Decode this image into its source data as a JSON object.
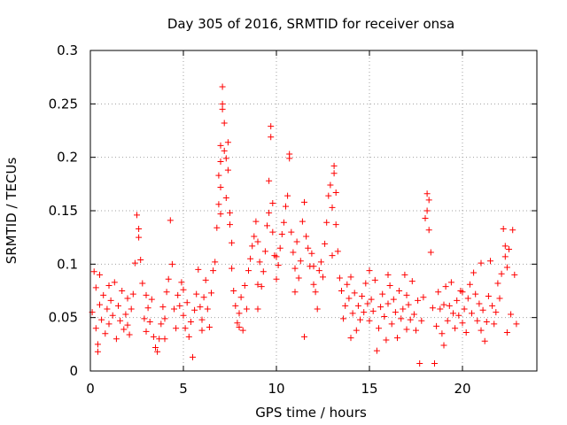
{
  "chart_data": {
    "type": "scatter",
    "title": "Day 305 of 2016, SRMTID for receiver onsa",
    "xlabel": "GPS time / hours",
    "ylabel": "SRMTID / TECUs",
    "xlim": [
      0,
      24
    ],
    "ylim": [
      0,
      0.3
    ],
    "x_ticks": [
      0,
      5,
      10,
      15,
      20
    ],
    "y_ticks": [
      0,
      0.05,
      0.1,
      0.15,
      0.2,
      0.25,
      0.3
    ],
    "x_tick_labels": [
      "0",
      "5",
      "10",
      "15",
      "20"
    ],
    "y_tick_labels": [
      "0",
      "0.05",
      "0.1",
      "0.15",
      "0.2",
      "0.25",
      "0.3"
    ],
    "grid": true,
    "marker": "+",
    "color": "#ff0000",
    "series": [
      {
        "name": "SRMTID",
        "points": [
          [
            0.1,
            0.055
          ],
          [
            0.2,
            0.093
          ],
          [
            0.3,
            0.078
          ],
          [
            0.3,
            0.04
          ],
          [
            0.4,
            0.025
          ],
          [
            0.4,
            0.018
          ],
          [
            0.5,
            0.062
          ],
          [
            0.6,
            0.048
          ],
          [
            0.7,
            0.071
          ],
          [
            0.8,
            0.035
          ],
          [
            0.9,
            0.058
          ],
          [
            1.0,
            0.044
          ],
          [
            1.1,
            0.066
          ],
          [
            1.2,
            0.052
          ],
          [
            1.3,
            0.083
          ],
          [
            1.4,
            0.03
          ],
          [
            1.5,
            0.061
          ],
          [
            1.6,
            0.047
          ],
          [
            1.7,
            0.075
          ],
          [
            1.8,
            0.039
          ],
          [
            1.9,
            0.053
          ],
          [
            2.0,
            0.068
          ],
          [
            2.1,
            0.034
          ],
          [
            2.2,
            0.058
          ],
          [
            2.3,
            0.072
          ],
          [
            2.4,
            0.101
          ],
          [
            2.5,
            0.146
          ],
          [
            2.6,
            0.133
          ],
          [
            2.6,
            0.125
          ],
          [
            2.7,
            0.104
          ],
          [
            2.8,
            0.082
          ],
          [
            2.9,
            0.049
          ],
          [
            3.0,
            0.037
          ],
          [
            3.1,
            0.059
          ],
          [
            3.2,
            0.046
          ],
          [
            3.3,
            0.067
          ],
          [
            3.4,
            0.032
          ],
          [
            3.5,
            0.022
          ],
          [
            3.6,
            0.018
          ],
          [
            3.7,
            0.03
          ],
          [
            3.8,
            0.044
          ],
          [
            3.9,
            0.06
          ],
          [
            4.0,
            0.049
          ],
          [
            4.1,
            0.074
          ],
          [
            4.2,
            0.086
          ],
          [
            4.3,
            0.141
          ],
          [
            4.4,
            0.1
          ],
          [
            4.5,
            0.058
          ],
          [
            4.6,
            0.04
          ],
          [
            4.7,
            0.071
          ],
          [
            4.8,
            0.061
          ],
          [
            4.9,
            0.083
          ],
          [
            5.0,
            0.052
          ],
          [
            5.1,
            0.04
          ],
          [
            5.2,
            0.064
          ],
          [
            5.3,
            0.032
          ],
          [
            5.4,
            0.046
          ],
          [
            5.5,
            0.013
          ],
          [
            5.6,
            0.057
          ],
          [
            5.7,
            0.072
          ],
          [
            5.8,
            0.095
          ],
          [
            5.9,
            0.06
          ],
          [
            6.0,
            0.048
          ],
          [
            6.1,
            0.069
          ],
          [
            6.2,
            0.085
          ],
          [
            6.3,
            0.058
          ],
          [
            6.4,
            0.041
          ],
          [
            6.5,
            0.073
          ],
          [
            6.6,
            0.094
          ],
          [
            6.7,
            0.102
          ],
          [
            6.8,
            0.134
          ],
          [
            6.9,
            0.156
          ],
          [
            6.9,
            0.183
          ],
          [
            7.0,
            0.211
          ],
          [
            7.0,
            0.196
          ],
          [
            7.0,
            0.172
          ],
          [
            7.0,
            0.147
          ],
          [
            7.1,
            0.266
          ],
          [
            7.1,
            0.25
          ],
          [
            7.1,
            0.245
          ],
          [
            7.2,
            0.232
          ],
          [
            7.2,
            0.206
          ],
          [
            7.3,
            0.199
          ],
          [
            7.3,
            0.162
          ],
          [
            7.4,
            0.214
          ],
          [
            7.4,
            0.188
          ],
          [
            7.5,
            0.148
          ],
          [
            7.5,
            0.137
          ],
          [
            7.6,
            0.12
          ],
          [
            7.6,
            0.096
          ],
          [
            7.7,
            0.075
          ],
          [
            7.8,
            0.061
          ],
          [
            7.9,
            0.045
          ],
          [
            8.0,
            0.054
          ],
          [
            8.1,
            0.069
          ],
          [
            8.2,
            0.038
          ],
          [
            8.3,
            0.08
          ],
          [
            8.4,
            0.058
          ],
          [
            8.5,
            0.094
          ],
          [
            8.6,
            0.105
          ],
          [
            8.7,
            0.117
          ],
          [
            8.8,
            0.126
          ],
          [
            8.9,
            0.14
          ],
          [
            9.0,
            0.121
          ],
          [
            9.0,
            0.058
          ],
          [
            9.1,
            0.102
          ],
          [
            9.2,
            0.079
          ],
          [
            9.3,
            0.093
          ],
          [
            9.4,
            0.112
          ],
          [
            9.5,
            0.136
          ],
          [
            9.6,
            0.148
          ],
          [
            9.6,
            0.178
          ],
          [
            9.7,
            0.229
          ],
          [
            9.7,
            0.219
          ],
          [
            9.8,
            0.157
          ],
          [
            9.8,
            0.13
          ],
          [
            9.9,
            0.108
          ],
          [
            10.0,
            0.086
          ],
          [
            10.1,
            0.099
          ],
          [
            10.2,
            0.115
          ],
          [
            10.3,
            0.128
          ],
          [
            10.4,
            0.139
          ],
          [
            10.5,
            0.154
          ],
          [
            10.6,
            0.164
          ],
          [
            10.7,
            0.203
          ],
          [
            10.7,
            0.199
          ],
          [
            10.8,
            0.13
          ],
          [
            10.9,
            0.111
          ],
          [
            11.0,
            0.096
          ],
          [
            11.1,
            0.121
          ],
          [
            11.2,
            0.087
          ],
          [
            11.3,
            0.103
          ],
          [
            11.4,
            0.14
          ],
          [
            11.5,
            0.158
          ],
          [
            11.5,
            0.032
          ],
          [
            11.6,
            0.126
          ],
          [
            11.7,
            0.115
          ],
          [
            11.8,
            0.098
          ],
          [
            11.9,
            0.11
          ],
          [
            12.0,
            0.081
          ],
          [
            12.1,
            0.074
          ],
          [
            12.2,
            0.058
          ],
          [
            12.3,
            0.094
          ],
          [
            12.4,
            0.102
          ],
          [
            12.5,
            0.088
          ],
          [
            12.6,
            0.119
          ],
          [
            12.7,
            0.139
          ],
          [
            12.8,
            0.164
          ],
          [
            12.9,
            0.174
          ],
          [
            13.0,
            0.153
          ],
          [
            13.1,
            0.192
          ],
          [
            13.1,
            0.185
          ],
          [
            13.2,
            0.167
          ],
          [
            13.2,
            0.137
          ],
          [
            13.3,
            0.112
          ],
          [
            13.4,
            0.087
          ],
          [
            13.5,
            0.075
          ],
          [
            13.6,
            0.049
          ],
          [
            13.7,
            0.061
          ],
          [
            13.8,
            0.081
          ],
          [
            13.9,
            0.068
          ],
          [
            14.0,
            0.088
          ],
          [
            14.1,
            0.054
          ],
          [
            14.2,
            0.073
          ],
          [
            14.3,
            0.038
          ],
          [
            14.4,
            0.061
          ],
          [
            14.5,
            0.048
          ],
          [
            14.6,
            0.07
          ],
          [
            14.7,
            0.055
          ],
          [
            14.8,
            0.082
          ],
          [
            14.9,
            0.063
          ],
          [
            15.0,
            0.047
          ],
          [
            15.1,
            0.067
          ],
          [
            15.2,
            0.056
          ],
          [
            15.3,
            0.085
          ],
          [
            15.4,
            0.019
          ],
          [
            15.5,
            0.04
          ],
          [
            15.6,
            0.06
          ],
          [
            15.7,
            0.072
          ],
          [
            15.8,
            0.051
          ],
          [
            15.9,
            0.029
          ],
          [
            16.0,
            0.063
          ],
          [
            16.1,
            0.08
          ],
          [
            16.2,
            0.044
          ],
          [
            16.3,
            0.067
          ],
          [
            16.4,
            0.055
          ],
          [
            16.5,
            0.031
          ],
          [
            16.6,
            0.075
          ],
          [
            16.7,
            0.049
          ],
          [
            16.8,
            0.058
          ],
          [
            16.9,
            0.09
          ],
          [
            17.0,
            0.071
          ],
          [
            17.1,
            0.062
          ],
          [
            17.2,
            0.048
          ],
          [
            17.3,
            0.084
          ],
          [
            17.4,
            0.053
          ],
          [
            17.5,
            0.038
          ],
          [
            17.6,
            0.066
          ],
          [
            17.7,
            0.007
          ],
          [
            17.8,
            0.047
          ],
          [
            17.9,
            0.069
          ],
          [
            18.0,
            0.143
          ],
          [
            18.1,
            0.166
          ],
          [
            18.1,
            0.15
          ],
          [
            18.2,
            0.16
          ],
          [
            18.2,
            0.132
          ],
          [
            18.3,
            0.111
          ],
          [
            18.4,
            0.059
          ],
          [
            18.5,
            0.007
          ],
          [
            18.6,
            0.042
          ],
          [
            18.7,
            0.074
          ],
          [
            18.8,
            0.058
          ],
          [
            18.9,
            0.035
          ],
          [
            19.0,
            0.062
          ],
          [
            19.1,
            0.079
          ],
          [
            19.2,
            0.047
          ],
          [
            19.3,
            0.061
          ],
          [
            19.4,
            0.083
          ],
          [
            19.5,
            0.054
          ],
          [
            19.6,
            0.04
          ],
          [
            19.7,
            0.066
          ],
          [
            19.8,
            0.052
          ],
          [
            19.9,
            0.075
          ],
          [
            20.0,
            0.045
          ],
          [
            20.1,
            0.058
          ],
          [
            20.2,
            0.036
          ],
          [
            20.3,
            0.068
          ],
          [
            20.4,
            0.081
          ],
          [
            20.5,
            0.054
          ],
          [
            20.6,
            0.092
          ],
          [
            20.7,
            0.072
          ],
          [
            20.8,
            0.047
          ],
          [
            20.9,
            0.063
          ],
          [
            21.0,
            0.038
          ],
          [
            21.1,
            0.057
          ],
          [
            21.2,
            0.028
          ],
          [
            21.3,
            0.046
          ],
          [
            21.4,
            0.07
          ],
          [
            21.5,
            0.103
          ],
          [
            21.6,
            0.061
          ],
          [
            21.7,
            0.044
          ],
          [
            21.8,
            0.055
          ],
          [
            21.9,
            0.082
          ],
          [
            22.0,
            0.068
          ],
          [
            22.1,
            0.091
          ],
          [
            22.2,
            0.133
          ],
          [
            22.3,
            0.117
          ],
          [
            22.3,
            0.107
          ],
          [
            22.4,
            0.097
          ],
          [
            22.5,
            0.114
          ],
          [
            22.6,
            0.053
          ],
          [
            22.7,
            0.132
          ],
          [
            22.8,
            0.09
          ],
          [
            22.9,
            0.044
          ],
          [
            22.4,
            0.036
          ],
          [
            21.0,
            0.101
          ],
          [
            20.0,
            0.074
          ],
          [
            19.0,
            0.024
          ],
          [
            17.0,
            0.039
          ],
          [
            16.0,
            0.09
          ],
          [
            15.0,
            0.094
          ],
          [
            14.0,
            0.031
          ],
          [
            13.0,
            0.108
          ],
          [
            12.0,
            0.098
          ],
          [
            11.0,
            0.074
          ],
          [
            10.0,
            0.107
          ],
          [
            9.0,
            0.081
          ],
          [
            8.0,
            0.041
          ],
          [
            6.0,
            0.038
          ],
          [
            5.0,
            0.076
          ],
          [
            4.0,
            0.03
          ],
          [
            3.0,
            0.071
          ],
          [
            2.0,
            0.043
          ],
          [
            1.0,
            0.08
          ],
          [
            0.5,
            0.09
          ]
        ]
      }
    ]
  }
}
